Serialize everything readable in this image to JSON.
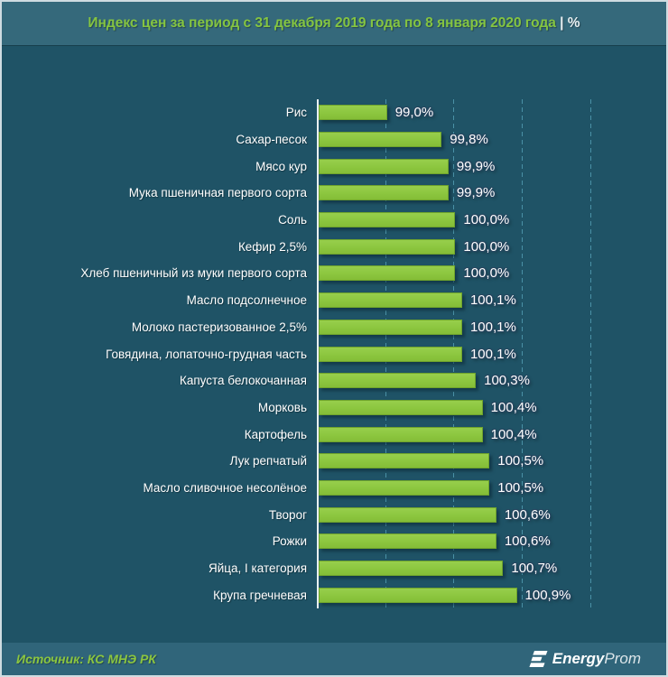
{
  "header": {
    "title_main": "Индекс цен за период с 31 декабря 2019 года по 8 января 2020 года",
    "title_unit": "| %"
  },
  "chart_data": {
    "type": "bar",
    "orientation": "horizontal",
    "title": "Индекс цен за период с 31 декабря 2019 года по 8 января 2020 года | %",
    "categories": [
      "Рис",
      "Сахар-песок",
      "Мясо кур",
      "Мука пшеничная первого сорта",
      "Соль",
      "Кефир 2,5%",
      "Хлеб пшеничный из муки первого сорта",
      "Масло подсолнечное",
      "Молоко пастеризованное 2,5%",
      "Говядина, лопаточно-грудная часть",
      "Капуста белокочанная",
      "Морковь",
      "Картофель",
      "Лук репчатый",
      "Масло сливочное несолёное",
      "Творог",
      "Рожки",
      "Яйца, I категория",
      "Крупа гречневая"
    ],
    "values": [
      99.0,
      99.8,
      99.9,
      99.9,
      100.0,
      100.0,
      100.0,
      100.1,
      100.1,
      100.1,
      100.3,
      100.4,
      100.4,
      100.5,
      100.5,
      100.6,
      100.6,
      100.7,
      100.9
    ],
    "value_labels": [
      "99,0%",
      "99,8%",
      "99,9%",
      "99,9%",
      "100,0%",
      "100,0%",
      "100,0%",
      "100,1%",
      "100,1%",
      "100,1%",
      "100,3%",
      "100,4%",
      "100,4%",
      "100,5%",
      "100,5%",
      "100,6%",
      "100,6%",
      "100,7%",
      "100,9%"
    ],
    "xlabel": "",
    "ylabel": "",
    "xlim": [
      98.0,
      103.0
    ],
    "gridlines_at": [
      99.0,
      100.0,
      101.0,
      102.0
    ],
    "grid": "dashed-vertical",
    "legend": "none",
    "bar_color": "#8CC63F",
    "bar_border_color": "#6FA32C",
    "background_color": "#1F5366",
    "gridline_color": "#4A91A6",
    "label_color": "#FFFFFF",
    "title_color": "#84C441"
  },
  "footer": {
    "source": "Источник: КС МНЭ РК",
    "logo_bold": "Energy",
    "logo_light": "Prom"
  }
}
